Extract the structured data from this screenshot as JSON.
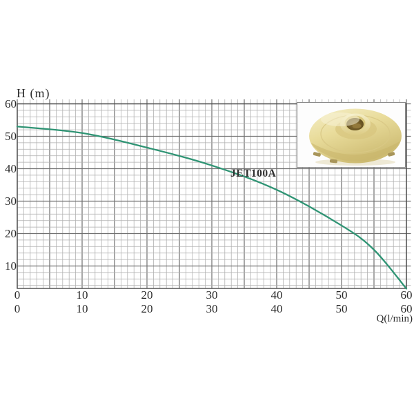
{
  "labels": {
    "y_axis_title": "H (m)",
    "x_axis_title": "Q(l/min)",
    "curve_label": "JET100A"
  },
  "chart_data": {
    "type": "line",
    "xlabel": "Q(l/min)",
    "ylabel": "H (m)",
    "xlim": [
      0,
      60
    ],
    "ylim_visible": [
      3,
      60
    ],
    "y_ticks": [
      60,
      50,
      40,
      30,
      20,
      10
    ],
    "x_ticks_row1": [
      0,
      10,
      20,
      30,
      40,
      50,
      60
    ],
    "x_ticks_row2": [
      0,
      10,
      20,
      30,
      40,
      50,
      60
    ],
    "grid": "minor 1 l/min x 2 m, major 5 l/min x 10 m, ticks extend past top and right borders",
    "legend_position": "none",
    "series": [
      {
        "name": "JET100A",
        "x": [
          0,
          10,
          20,
          30,
          40,
          50,
          55,
          60
        ],
        "y": [
          53,
          51,
          46.5,
          41,
          33.5,
          22.5,
          15,
          3
        ]
      }
    ]
  },
  "colors": {
    "background": "#ffffff",
    "grid_minor": "#aeaeae",
    "grid_major": "#6f6f6f",
    "axis_border": "#4a4a4a",
    "curve": "#2f9474",
    "text": "#2b2b2b",
    "inset_border": "#8a8a8a",
    "impeller_light": "#f5efc9",
    "impeller_body": "#e9dc9b",
    "impeller_dark": "#c8b569",
    "impeller_hole": "#4a3a12"
  },
  "inset": {
    "name": "impeller-photo"
  }
}
